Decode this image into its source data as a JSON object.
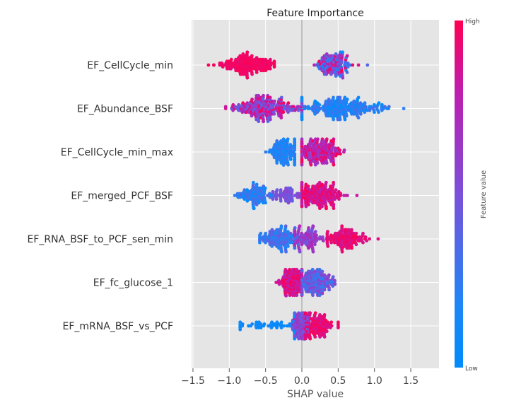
{
  "chart_data": {
    "type": "scatter",
    "subtype": "shap-beeswarm",
    "title": "Feature Importance",
    "xlabel": "SHAP value",
    "ylabel": "",
    "xlim": [
      -1.65,
      1.9
    ],
    "xticks": [
      -1.5,
      -1.0,
      -0.5,
      0.0,
      0.5,
      1.0,
      1.5
    ],
    "xtick_labels": [
      "−1.5",
      "−1.0",
      "−0.5",
      "0.0",
      "0.5",
      "1.0",
      "1.5"
    ],
    "grid": true,
    "colorbar": {
      "label": "Feature value",
      "high_label": "High",
      "low_label": "Low",
      "low_color": "#008bfb",
      "high_color": "#ff0051"
    },
    "features": [
      {
        "name": "EF_CellCycle_min",
        "clusters": [
          {
            "center": -0.75,
            "sd": 0.2,
            "min": -1.42,
            "max": -0.38,
            "n": 170,
            "value_range": [
              0.92,
              1.0
            ]
          },
          {
            "center": 0.45,
            "sd": 0.13,
            "min": 0.15,
            "max": 0.95,
            "n": 140,
            "value_range": [
              0.1,
              1.0
            ]
          }
        ]
      },
      {
        "name": "EF_Abundance_BSF",
        "clusters": [
          {
            "center": -0.5,
            "sd": 0.25,
            "min": -1.05,
            "max": 0.0,
            "n": 230,
            "value_range": [
              0.35,
              1.0
            ]
          },
          {
            "center": 0.55,
            "sd": 0.28,
            "min": 0.0,
            "max": 1.75,
            "n": 230,
            "value_range": [
              0.0,
              0.35
            ]
          }
        ]
      },
      {
        "name": "EF_CellCycle_min_max",
        "clusters": [
          {
            "center": -0.25,
            "sd": 0.11,
            "min": -0.8,
            "max": -0.1,
            "n": 130,
            "value_range": [
              0.05,
              0.3
            ]
          },
          {
            "center": 0.25,
            "sd": 0.15,
            "min": 0.0,
            "max": 1.55,
            "n": 190,
            "value_range": [
              0.6,
              1.0
            ]
          }
        ]
      },
      {
        "name": "EF_merged_PCF_BSF",
        "clusters": [
          {
            "center": -0.65,
            "sd": 0.12,
            "min": -0.98,
            "max": -0.4,
            "n": 110,
            "value_range": [
              0.05,
              0.4
            ]
          },
          {
            "center": -0.22,
            "sd": 0.1,
            "min": -0.4,
            "max": 0.0,
            "n": 60,
            "value_range": [
              0.4,
              0.6
            ]
          },
          {
            "center": 0.25,
            "sd": 0.15,
            "min": 0.0,
            "max": 0.82,
            "n": 190,
            "value_range": [
              0.75,
              1.0
            ]
          }
        ]
      },
      {
        "name": "EF_RNA_BSF_to_PCF_sen_min",
        "clusters": [
          {
            "center": -0.32,
            "sd": 0.12,
            "min": -0.58,
            "max": -0.05,
            "n": 130,
            "value_range": [
              0.1,
              0.45
            ]
          },
          {
            "center": 0.05,
            "sd": 0.12,
            "min": -0.1,
            "max": 0.35,
            "n": 100,
            "value_range": [
              0.45,
              0.75
            ]
          },
          {
            "center": 0.6,
            "sd": 0.17,
            "min": 0.35,
            "max": 1.25,
            "n": 130,
            "value_range": [
              0.85,
              1.0
            ]
          }
        ]
      },
      {
        "name": "EF_fc_glucose_1",
        "clusters": [
          {
            "center": -0.12,
            "sd": 0.1,
            "min": -0.38,
            "max": 0.0,
            "n": 160,
            "value_range": [
              0.75,
              1.0
            ]
          },
          {
            "center": 0.2,
            "sd": 0.14,
            "min": 0.0,
            "max": 0.6,
            "n": 160,
            "value_range": [
              0.2,
              0.65
            ]
          }
        ]
      },
      {
        "name": "EF_mRNA_BSF_vs_PCF",
        "clusters": [
          {
            "center": -0.4,
            "sd": 0.28,
            "min": -0.85,
            "max": -0.1,
            "n": 60,
            "value_range": [
              0.0,
              0.15
            ]
          },
          {
            "center": -0.02,
            "sd": 0.06,
            "min": -0.15,
            "max": 0.1,
            "n": 110,
            "value_range": [
              0.4,
              0.7
            ]
          },
          {
            "center": 0.22,
            "sd": 0.12,
            "min": 0.05,
            "max": 0.5,
            "n": 120,
            "value_range": [
              0.85,
              1.0
            ]
          }
        ]
      }
    ]
  }
}
